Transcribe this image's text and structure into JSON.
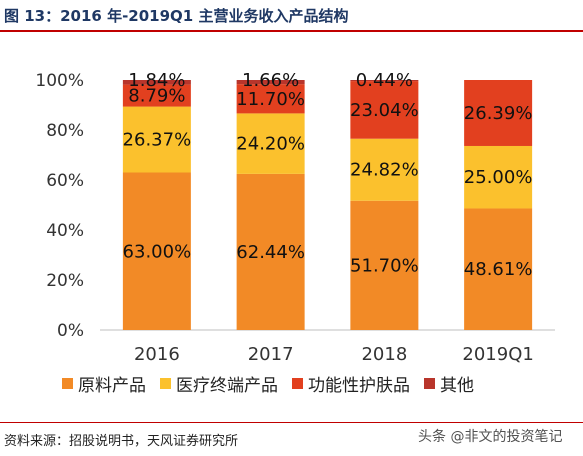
{
  "header": {
    "title": "图 13：2016 年-2019Q1 主营业务收入产品结构"
  },
  "footer": {
    "source": "资料来源：招股说明书，天风证券研究所",
    "watermark": "头条 @非文的投资笔记"
  },
  "chart_data": {
    "type": "bar",
    "stacked": true,
    "categories": [
      "2016",
      "2017",
      "2018",
      "2019Q1"
    ],
    "ylim": [
      0,
      100
    ],
    "yticks": [
      "0%",
      "20%",
      "40%",
      "60%",
      "80%",
      "100%"
    ],
    "series": [
      {
        "name": "原料产品",
        "color": "#f28a26",
        "values": [
          63.0,
          62.44,
          51.7,
          48.61
        ],
        "labels": [
          "63.00%",
          "62.44%",
          "51.70%",
          "48.61%"
        ]
      },
      {
        "name": "医疗终端产品",
        "color": "#fbc12d",
        "values": [
          26.37,
          24.2,
          24.82,
          25.0
        ],
        "labels": [
          "26.37%",
          "24.20%",
          "24.82%",
          "25.00%"
        ]
      },
      {
        "name": "功能性护肤品",
        "color": "#e2401f",
        "values": [
          8.79,
          11.7,
          23.04,
          26.39
        ],
        "labels": [
          "8.79%",
          "11.70%",
          "23.04%",
          "26.39%"
        ]
      },
      {
        "name": "其他",
        "color": "#b8352b",
        "values": [
          1.84,
          1.66,
          0.44,
          0.0
        ],
        "labels": [
          "1.84%",
          "1.66%",
          "0.44%",
          ""
        ]
      }
    ],
    "legend_position": "bottom",
    "grid": false
  }
}
